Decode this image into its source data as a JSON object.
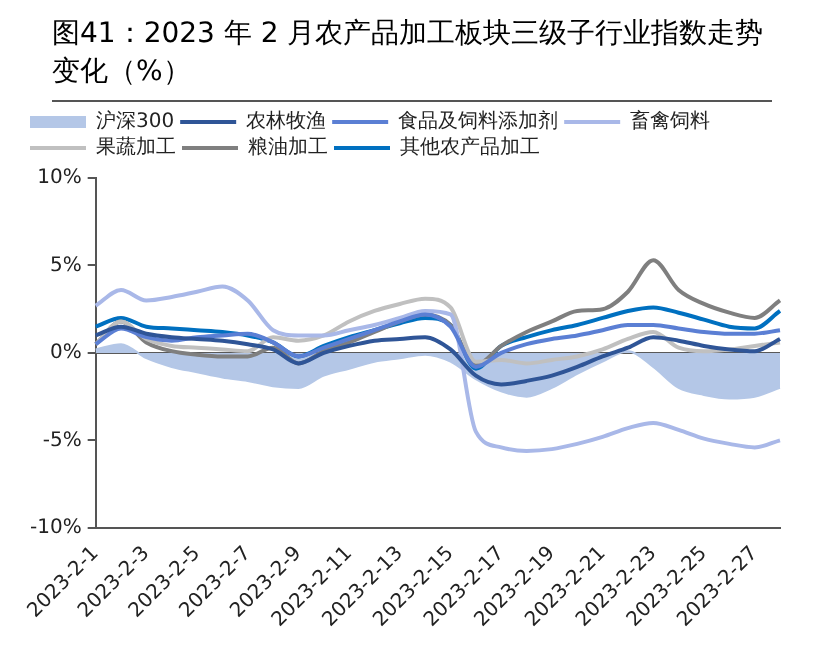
{
  "chart_data": {
    "type": "line",
    "title": "图41：2023 年 2 月农产品加工板块三级子行业指数走势变化（%）",
    "categories": [
      "2023-2-1",
      null,
      "2023-2-3",
      null,
      "2023-2-5",
      null,
      "2023-2-7",
      null,
      "2023-2-9",
      null,
      "2023-2-11",
      null,
      "2023-2-13",
      null,
      "2023-2-15",
      null,
      "2023-2-17",
      null,
      "2023-2-19",
      null,
      "2023-2-21",
      null,
      "2023-2-23",
      null,
      "2023-2-25",
      null,
      "2023-2-27",
      null
    ],
    "ylim": [
      -10,
      10
    ],
    "yticks": [
      {
        "value": -10,
        "label": "-10%"
      },
      {
        "value": -5,
        "label": "-5%"
      },
      {
        "value": 0,
        "label": "0%"
      },
      {
        "value": 5,
        "label": "5%"
      },
      {
        "value": 10,
        "label": "10%"
      }
    ],
    "legend": "top",
    "marker": "none",
    "ref_lines": [
      {
        "axis": "y",
        "value": 0,
        "color": "#595959"
      }
    ],
    "series": [
      {
        "name": "沪深300",
        "type": "area",
        "color": "#b4c7e7",
        "values": [
          0.2,
          0.5,
          -0.3,
          -0.8,
          -1.1,
          -1.4,
          -1.6,
          -1.9,
          -2.0,
          -1.3,
          -0.9,
          -0.5,
          -0.3,
          -0.1,
          -0.5,
          -1.5,
          -2.2,
          -2.5,
          -2.0,
          -1.2,
          -0.5,
          0.1,
          -0.8,
          -2.0,
          -2.4,
          -2.6,
          -2.5,
          -2.0
        ]
      },
      {
        "name": "农林牧渔",
        "color": "#2f5597",
        "values": [
          1.0,
          1.5,
          1.1,
          0.9,
          0.8,
          0.7,
          0.5,
          0.2,
          -0.6,
          0.0,
          0.4,
          0.7,
          0.8,
          0.9,
          0.2,
          -1.3,
          -1.8,
          -1.6,
          -1.3,
          -0.8,
          -0.2,
          0.3,
          0.9,
          0.7,
          0.4,
          0.2,
          0.1,
          0.8
        ]
      },
      {
        "name": "食品及饲料添加剂",
        "color": "#5b7fd4",
        "values": [
          0.5,
          1.4,
          0.9,
          0.7,
          0.9,
          1.0,
          1.1,
          0.6,
          -0.2,
          0.3,
          0.8,
          1.3,
          1.8,
          2.2,
          1.5,
          -0.8,
          0.0,
          0.5,
          0.8,
          1.0,
          1.3,
          1.6,
          1.6,
          1.4,
          1.2,
          1.1,
          1.1,
          1.3
        ]
      },
      {
        "name": "畜禽饲料",
        "color": "#a9b8e8",
        "values": [
          2.7,
          3.6,
          3.0,
          3.2,
          3.5,
          3.8,
          3.0,
          1.3,
          1.0,
          1.0,
          1.3,
          1.6,
          2.0,
          2.4,
          2.2,
          -4.5,
          -5.4,
          -5.6,
          -5.5,
          -5.2,
          -4.8,
          -4.3,
          -4.0,
          -4.4,
          -4.9,
          -5.2,
          -5.4,
          -5.0
        ]
      },
      {
        "name": "果蔬加工",
        "color": "#c0c0c0",
        "values": [
          0.5,
          1.8,
          0.8,
          0.4,
          0.3,
          0.2,
          0.1,
          0.9,
          0.7,
          1.0,
          1.8,
          2.4,
          2.8,
          3.1,
          2.6,
          -0.5,
          -0.4,
          -0.6,
          -0.4,
          -0.2,
          0.2,
          0.8,
          1.2,
          0.3,
          0.1,
          0.2,
          0.4,
          0.6
        ]
      },
      {
        "name": "粮油加工",
        "color": "#7f7f7f",
        "values": [
          0.5,
          1.8,
          0.6,
          0.1,
          -0.1,
          -0.2,
          -0.2,
          0.3,
          -0.6,
          0.1,
          0.6,
          1.2,
          1.8,
          2.2,
          1.6,
          -0.7,
          0.4,
          1.2,
          1.8,
          2.4,
          2.5,
          3.5,
          5.3,
          3.6,
          2.8,
          2.3,
          2.0,
          3.0
        ]
      },
      {
        "name": "其他农产品加工",
        "color": "#0070c0",
        "values": [
          1.5,
          2.0,
          1.5,
          1.4,
          1.3,
          1.2,
          1.0,
          0.6,
          -0.2,
          0.4,
          0.9,
          1.3,
          1.7,
          2.0,
          1.6,
          -0.9,
          0.4,
          0.9,
          1.3,
          1.6,
          2.0,
          2.4,
          2.6,
          2.3,
          1.9,
          1.5,
          1.4,
          2.4
        ]
      }
    ]
  }
}
